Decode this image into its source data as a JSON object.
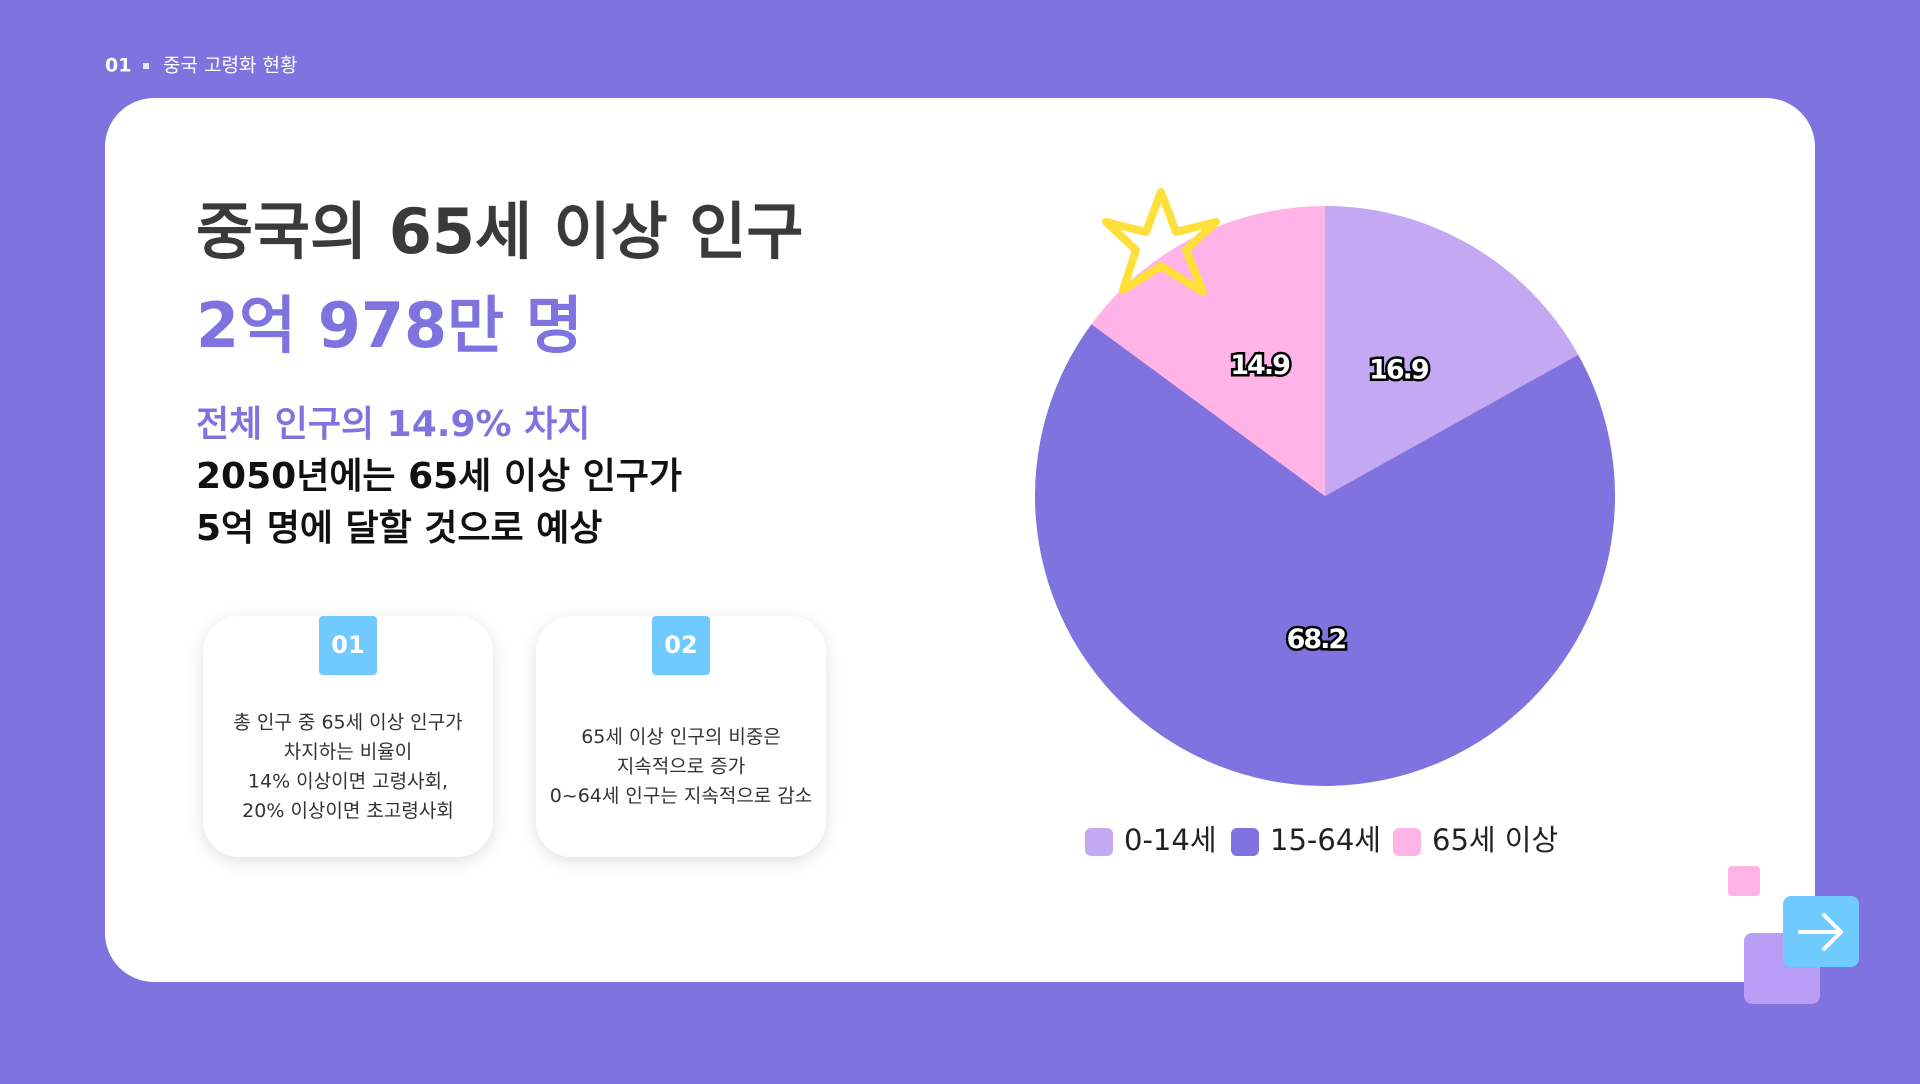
{
  "header": {
    "number": "01",
    "title": "중국 고령화 현황"
  },
  "headline": {
    "title": "중국의 65세 이상 인구",
    "figure": "2억 978만 명",
    "share": "전체 인구의 14.9% 차지",
    "lines": [
      "2050년에는 65세 이상 인구가",
      "5억 명에 달할 것으로 예상"
    ]
  },
  "cards": [
    {
      "badge": "01",
      "lines": [
        "총 인구 중 65세 이상 인구가",
        "차지하는 비율이",
        "14% 이상이면 고령사회,",
        "20% 이상이면 초고령사회"
      ]
    },
    {
      "badge": "02",
      "lines": [
        "65세 이상 인구의 비중은",
        "지속적으로 증가",
        "0~64세 인구는 지속적으로 감소"
      ]
    }
  ],
  "chart_data": {
    "type": "pie",
    "categories": [
      "0-14세",
      "15-64세",
      "65세 이상"
    ],
    "values": [
      16.9,
      68.2,
      14.9
    ],
    "colors": [
      "#c4a8f2",
      "#8073e0",
      "#ffb3e6"
    ],
    "legend": "bottom"
  }
}
